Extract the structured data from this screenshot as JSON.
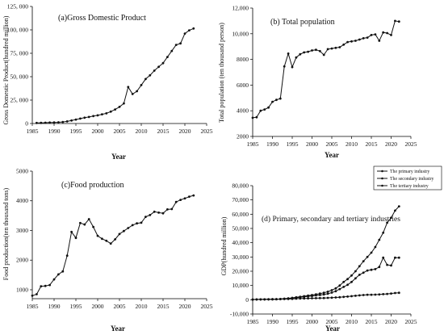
{
  "chart_data": [
    {
      "type": "line",
      "title": "(a)Gross Domestic Product",
      "xlabel": "Year",
      "ylabel": "Gross Domestic Product(hundred million)",
      "xlim": [
        1985,
        2025
      ],
      "ylim": [
        0,
        125000
      ],
      "xticks": [
        1985,
        1990,
        1995,
        2000,
        2005,
        2010,
        2015,
        2020,
        2025
      ],
      "yticks": [
        0,
        25000,
        50000,
        75000,
        100000,
        125000
      ],
      "ytick_labels": [
        "0",
        "25, 000",
        "50, 000",
        "75, 000",
        "100, 000",
        "125, 000"
      ],
      "series": [
        {
          "x": [
            1986,
            1987,
            1988,
            1989,
            1990,
            1991,
            1992,
            1993,
            1994,
            1995,
            1996,
            1997,
            1998,
            1999,
            2000,
            2001,
            2002,
            2003,
            2004,
            2005,
            2006,
            2007,
            2008,
            2009,
            2010,
            2011,
            2012,
            2013,
            2014,
            2015,
            2016,
            2017,
            2018,
            2019,
            2020,
            2021,
            2022
          ],
          "values": [
            600,
            700,
            900,
            1000,
            1100,
            1300,
            1600,
            2200,
            3200,
            4200,
            5300,
            6200,
            7000,
            7900,
            8700,
            9800,
            10900,
            12700,
            15000,
            17800,
            21500,
            39000,
            31500,
            34500,
            41000,
            47500,
            51500,
            56500,
            60500,
            64500,
            71000,
            77500,
            84000,
            85500,
            96000,
            99500,
            101500
          ]
        }
      ]
    },
    {
      "type": "line",
      "title": "(b) Total population",
      "xlabel": "Year",
      "ylabel": "Total population (ten thousand person)",
      "xlim": [
        1985,
        2025
      ],
      "ylim": [
        2000,
        12000
      ],
      "xticks": [
        1985,
        1990,
        1995,
        2000,
        2005,
        2010,
        2015,
        2020,
        2025
      ],
      "yticks": [
        2000,
        4000,
        6000,
        8000,
        10000,
        12000
      ],
      "ytick_labels": [
        "2000",
        "4000",
        "6000",
        "8000",
        "10,000",
        "12,000"
      ],
      "series": [
        {
          "x": [
            1985,
            1986,
            1987,
            1988,
            1989,
            1990,
            1991,
            1992,
            1993,
            1994,
            1995,
            1996,
            1997,
            1998,
            1999,
            2000,
            2001,
            2002,
            2003,
            2004,
            2005,
            2006,
            2007,
            2008,
            2009,
            2010,
            2011,
            2012,
            2013,
            2014,
            2015,
            2016,
            2017,
            2018,
            2019,
            2020,
            2021,
            2022
          ],
          "values": [
            3450,
            3500,
            4000,
            4100,
            4250,
            4700,
            4850,
            4950,
            7450,
            8450,
            7400,
            8150,
            8400,
            8550,
            8600,
            8700,
            8750,
            8650,
            8350,
            8800,
            8850,
            8900,
            8950,
            9150,
            9350,
            9400,
            9450,
            9550,
            9650,
            9700,
            9900,
            9950,
            9450,
            10100,
            10050,
            9900,
            11000,
            10950
          ]
        }
      ]
    },
    {
      "type": "line",
      "title": "(c)Food production",
      "xlabel": "Year",
      "ylabel": "Food production(ten thousand tons)",
      "xlim": [
        1985,
        2025
      ],
      "ylim": [
        700,
        5000
      ],
      "xticks": [
        1985,
        1990,
        1995,
        2000,
        2005,
        2010,
        2015,
        2020,
        2025
      ],
      "yticks": [
        1000,
        2000,
        3000,
        4000,
        5000
      ],
      "ytick_labels": [
        "1000",
        "2000",
        "3000",
        "4000",
        "5000"
      ],
      "series": [
        {
          "x": [
            1985,
            1986,
            1987,
            1988,
            1989,
            1990,
            1991,
            1992,
            1993,
            1994,
            1995,
            1996,
            1997,
            1998,
            1999,
            2000,
            2001,
            2002,
            2003,
            2004,
            2005,
            2006,
            2007,
            2008,
            2009,
            2010,
            2011,
            2012,
            2013,
            2014,
            2015,
            2016,
            2017,
            2018,
            2019,
            2020,
            2021,
            2022
          ],
          "values": [
            800,
            850,
            1120,
            1130,
            1160,
            1350,
            1520,
            1620,
            2150,
            2950,
            2750,
            3250,
            3200,
            3380,
            3120,
            2820,
            2720,
            2650,
            2560,
            2700,
            2880,
            2980,
            3080,
            3180,
            3240,
            3260,
            3460,
            3520,
            3630,
            3600,
            3580,
            3710,
            3720,
            3960,
            4030,
            4080,
            4140,
            4180
          ]
        }
      ]
    },
    {
      "type": "line",
      "title": "(d) Primary, secondary and tertiary industries",
      "xlabel": "Year",
      "ylabel": "GDP(hundred million)",
      "xlim": [
        1985,
        2025
      ],
      "ylim": [
        -10000,
        80000
      ],
      "xticks": [
        1985,
        1990,
        1995,
        2000,
        2005,
        2010,
        2015,
        2020,
        2025
      ],
      "yticks": [
        -10000,
        0,
        10000,
        20000,
        30000,
        40000,
        50000,
        60000,
        70000,
        80000
      ],
      "ytick_labels": [
        "-10,000",
        "0",
        "10,000",
        "20,000",
        "30,000",
        "40,000",
        "50,000",
        "60,000",
        "70,000",
        "80,000"
      ],
      "legend": "top-left",
      "series": [
        {
          "name": "The primary industry",
          "x": [
            1985,
            1986,
            1987,
            1988,
            1989,
            1990,
            1991,
            1992,
            1993,
            1994,
            1995,
            1996,
            1997,
            1998,
            1999,
            2000,
            2001,
            2002,
            2003,
            2004,
            2005,
            2006,
            2007,
            2008,
            2009,
            2010,
            2011,
            2012,
            2013,
            2014,
            2015,
            2016,
            2017,
            2018,
            2019,
            2020,
            2021,
            2022
          ],
          "values": [
            200,
            220,
            250,
            280,
            300,
            330,
            360,
            400,
            450,
            550,
            650,
            750,
            850,
            950,
            1000,
            1050,
            1100,
            1150,
            1200,
            1300,
            1450,
            1600,
            1800,
            2000,
            2200,
            2500,
            2800,
            3100,
            3300,
            3500,
            3500,
            3600,
            3700,
            3900,
            4100,
            4400,
            4700,
            4900
          ]
        },
        {
          "name": "The secondary industry",
          "x": [
            1985,
            1986,
            1987,
            1988,
            1989,
            1990,
            1991,
            1992,
            1993,
            1994,
            1995,
            1996,
            1997,
            1998,
            1999,
            2000,
            2001,
            2002,
            2003,
            2004,
            2005,
            2006,
            2007,
            2008,
            2009,
            2010,
            2011,
            2012,
            2013,
            2014,
            2015,
            2016,
            2017,
            2018,
            2019,
            2020,
            2021,
            2022
          ],
          "values": [
            150,
            180,
            220,
            260,
            300,
            350,
            400,
            500,
            700,
            900,
            1200,
            1500,
            1800,
            2100,
            2400,
            2700,
            3000,
            3300,
            3700,
            4200,
            5000,
            6000,
            7500,
            9000,
            10500,
            12500,
            15000,
            17500,
            19000,
            20500,
            21000,
            21500,
            23000,
            29500,
            24500,
            24000,
            29500,
            29500
          ]
        },
        {
          "name": "The tertiary industry",
          "x": [
            1985,
            1986,
            1987,
            1988,
            1989,
            1990,
            1991,
            1992,
            1993,
            1994,
            1995,
            1996,
            1997,
            1998,
            1999,
            2000,
            2001,
            2002,
            2003,
            2004,
            2005,
            2006,
            2007,
            2008,
            2009,
            2010,
            2011,
            2012,
            2013,
            2014,
            2015,
            2016,
            2017,
            2018,
            2019,
            2020,
            2021,
            2022
          ],
          "values": [
            150,
            180,
            220,
            260,
            300,
            350,
            420,
            550,
            750,
            1000,
            1300,
            1700,
            2100,
            2500,
            2900,
            3300,
            3800,
            4300,
            4900,
            5600,
            6700,
            8000,
            10000,
            12500,
            14500,
            17000,
            20000,
            23500,
            27000,
            30000,
            33000,
            37000,
            42000,
            47000,
            54000,
            57500,
            62500,
            65500
          ]
        }
      ]
    }
  ]
}
